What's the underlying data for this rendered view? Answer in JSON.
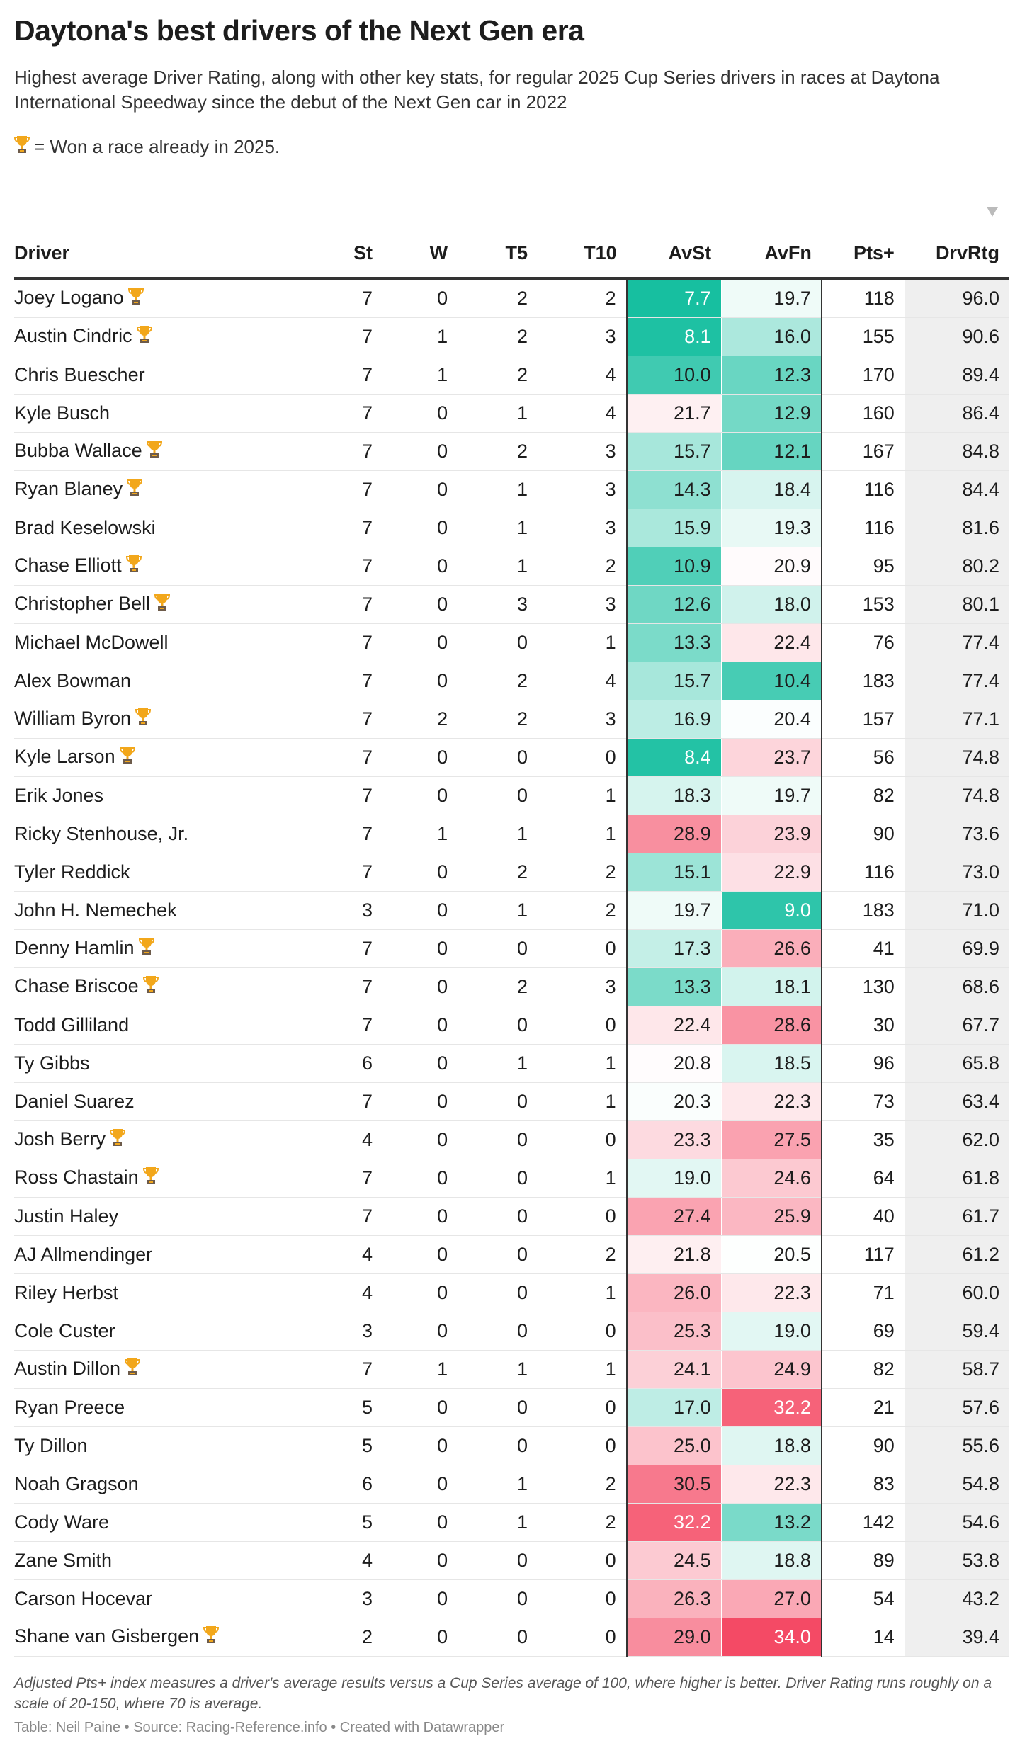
{
  "title": "Daytona's best drivers of the Next Gen era",
  "subtitle": "Highest average Driver Rating, along with other key stats, for regular 2025 Cup Series drivers in races at Daytona International Speedway since the debut of the Next Gen car in 2022",
  "legend_note": "= Won a race already in 2025.",
  "legend_icon": "trophy-icon",
  "notes": "Adjusted Pts+ index measures a driver's average results versus a Cup Series average of 100, where higher is better. Driver Rating runs roughly on a scale of 20-150, where 70 is average.",
  "byline": "Table: Neil Paine • Source: Racing-Reference.info • Created with Datawrapper",
  "colors": {
    "good": "#0abb9b",
    "neutral": "#ffffff",
    "bad": "#f4435f",
    "rating_bg": "#efefef"
  },
  "chart_data": {
    "type": "table",
    "sorted_by": "DrvRtg",
    "sort_direction": "descending",
    "columns": [
      "Driver",
      "St",
      "W",
      "T5",
      "T10",
      "AvSt",
      "AvFn",
      "Pts+",
      "DrvRtg"
    ],
    "rows": [
      [
        "Joey Logano",
        true,
        7,
        0,
        2,
        2,
        "7.7",
        "19.7",
        118,
        "96.0"
      ],
      [
        "Austin Cindric",
        true,
        7,
        1,
        2,
        3,
        "8.1",
        "16.0",
        155,
        "90.6"
      ],
      [
        "Chris Buescher",
        false,
        7,
        1,
        2,
        4,
        "10.0",
        "12.3",
        170,
        "89.4"
      ],
      [
        "Kyle Busch",
        false,
        7,
        0,
        1,
        4,
        "21.7",
        "12.9",
        160,
        "86.4"
      ],
      [
        "Bubba Wallace",
        true,
        7,
        0,
        2,
        3,
        "15.7",
        "12.1",
        167,
        "84.8"
      ],
      [
        "Ryan Blaney",
        true,
        7,
        0,
        1,
        3,
        "14.3",
        "18.4",
        116,
        "84.4"
      ],
      [
        "Brad Keselowski",
        false,
        7,
        0,
        1,
        3,
        "15.9",
        "19.3",
        116,
        "81.6"
      ],
      [
        "Chase Elliott",
        true,
        7,
        0,
        1,
        2,
        "10.9",
        "20.9",
        95,
        "80.2"
      ],
      [
        "Christopher Bell",
        true,
        7,
        0,
        3,
        3,
        "12.6",
        "18.0",
        153,
        "80.1"
      ],
      [
        "Michael McDowell",
        false,
        7,
        0,
        0,
        1,
        "13.3",
        "22.4",
        76,
        "77.4"
      ],
      [
        "Alex Bowman",
        false,
        7,
        0,
        2,
        4,
        "15.7",
        "10.4",
        183,
        "77.4"
      ],
      [
        "William Byron",
        true,
        7,
        2,
        2,
        3,
        "16.9",
        "20.4",
        157,
        "77.1"
      ],
      [
        "Kyle Larson",
        true,
        7,
        0,
        0,
        0,
        "8.4",
        "23.7",
        56,
        "74.8"
      ],
      [
        "Erik Jones",
        false,
        7,
        0,
        0,
        1,
        "18.3",
        "19.7",
        82,
        "74.8"
      ],
      [
        "Ricky Stenhouse, Jr.",
        false,
        7,
        1,
        1,
        1,
        "28.9",
        "23.9",
        90,
        "73.6"
      ],
      [
        "Tyler Reddick",
        false,
        7,
        0,
        2,
        2,
        "15.1",
        "22.9",
        116,
        "73.0"
      ],
      [
        "John H. Nemechek",
        false,
        3,
        0,
        1,
        2,
        "19.7",
        "9.0",
        183,
        "71.0"
      ],
      [
        "Denny Hamlin",
        true,
        7,
        0,
        0,
        0,
        "17.3",
        "26.6",
        41,
        "69.9"
      ],
      [
        "Chase Briscoe",
        true,
        7,
        0,
        2,
        3,
        "13.3",
        "18.1",
        130,
        "68.6"
      ],
      [
        "Todd Gilliland",
        false,
        7,
        0,
        0,
        0,
        "22.4",
        "28.6",
        30,
        "67.7"
      ],
      [
        "Ty Gibbs",
        false,
        6,
        0,
        1,
        1,
        "20.8",
        "18.5",
        96,
        "65.8"
      ],
      [
        "Daniel Suarez",
        false,
        7,
        0,
        0,
        1,
        "20.3",
        "22.3",
        73,
        "63.4"
      ],
      [
        "Josh Berry",
        true,
        4,
        0,
        0,
        0,
        "23.3",
        "27.5",
        35,
        "62.0"
      ],
      [
        "Ross Chastain",
        true,
        7,
        0,
        0,
        1,
        "19.0",
        "24.6",
        64,
        "61.8"
      ],
      [
        "Justin Haley",
        false,
        7,
        0,
        0,
        0,
        "27.4",
        "25.9",
        40,
        "61.7"
      ],
      [
        "AJ Allmendinger",
        false,
        4,
        0,
        0,
        2,
        "21.8",
        "20.5",
        117,
        "61.2"
      ],
      [
        "Riley Herbst",
        false,
        4,
        0,
        0,
        1,
        "26.0",
        "22.3",
        71,
        "60.0"
      ],
      [
        "Cole Custer",
        false,
        3,
        0,
        0,
        0,
        "25.3",
        "19.0",
        69,
        "59.4"
      ],
      [
        "Austin Dillon",
        true,
        7,
        1,
        1,
        1,
        "24.1",
        "24.9",
        82,
        "58.7"
      ],
      [
        "Ryan Preece",
        false,
        5,
        0,
        0,
        0,
        "17.0",
        "32.2",
        21,
        "57.6"
      ],
      [
        "Ty Dillon",
        false,
        5,
        0,
        0,
        0,
        "25.0",
        "18.8",
        90,
        "55.6"
      ],
      [
        "Noah Gragson",
        false,
        6,
        0,
        1,
        2,
        "30.5",
        "22.3",
        83,
        "54.8"
      ],
      [
        "Cody Ware",
        false,
        5,
        0,
        1,
        2,
        "32.2",
        "13.2",
        142,
        "54.6"
      ],
      [
        "Zane Smith",
        false,
        4,
        0,
        0,
        0,
        "24.5",
        "18.8",
        89,
        "53.8"
      ],
      [
        "Carson Hocevar",
        false,
        3,
        0,
        0,
        0,
        "26.3",
        "27.0",
        54,
        "43.2"
      ],
      [
        "Shane van Gisbergen",
        true,
        2,
        0,
        0,
        0,
        "29.0",
        "34.0",
        14,
        "39.4"
      ]
    ]
  }
}
